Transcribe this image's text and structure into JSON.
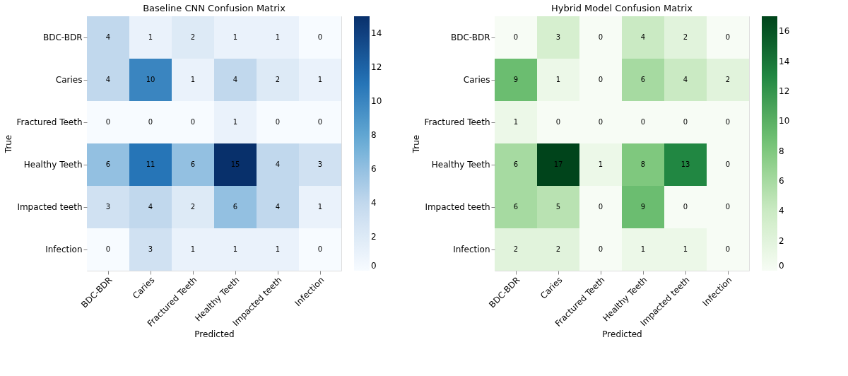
{
  "chart_data": [
    {
      "type": "heatmap",
      "title": "Baseline CNN Confusion Matrix",
      "xlabel": "Predicted",
      "ylabel": "True",
      "categories": [
        "BDC-BDR",
        "Caries",
        "Fractured Teeth",
        "Healthy Teeth",
        "Impacted teeth",
        "Infection"
      ],
      "y_categories": [
        "BDC-BDR",
        "Caries",
        "Fractured Teeth",
        "Healthy Teeth",
        "Impacted teeth",
        "Infection"
      ],
      "cells": [
        [
          4,
          1,
          2,
          1,
          1,
          0
        ],
        [
          4,
          10,
          1,
          4,
          2,
          1
        ],
        [
          0,
          0,
          0,
          1,
          0,
          0
        ],
        [
          6,
          11,
          6,
          15,
          4,
          3
        ],
        [
          3,
          4,
          2,
          6,
          4,
          1
        ],
        [
          0,
          3,
          1,
          1,
          1,
          0
        ]
      ],
      "clim": [
        0,
        15
      ],
      "cticks": [
        0,
        2,
        4,
        6,
        8,
        10,
        12,
        14
      ],
      "data_labels": true,
      "colors": [
        "#f7fbff",
        "#c6dbef",
        "#6baed6",
        "#2171b5",
        "#08306b"
      ]
    },
    {
      "type": "heatmap",
      "title": "Hybrid Model Confusion Matrix",
      "xlabel": "Predicted",
      "ylabel": "True",
      "categories": [
        "BDC-BDR",
        "Caries",
        "Fractured Teeth",
        "Healthy Teeth",
        "Impacted teeth",
        "Infection"
      ],
      "y_categories": [
        "BDC-BDR",
        "Caries",
        "Fractured Teeth",
        "Healthy Teeth",
        "Impacted teeth",
        "Infection"
      ],
      "cells": [
        [
          0,
          3,
          0,
          4,
          2,
          0
        ],
        [
          9,
          1,
          0,
          6,
          4,
          2
        ],
        [
          1,
          0,
          0,
          0,
          0,
          0
        ],
        [
          6,
          17,
          1,
          8,
          13,
          0
        ],
        [
          6,
          5,
          0,
          9,
          0,
          0
        ],
        [
          2,
          2,
          0,
          1,
          1,
          0
        ]
      ],
      "clim": [
        0,
        17
      ],
      "cticks": [
        0,
        2,
        4,
        6,
        8,
        10,
        12,
        14,
        16
      ],
      "data_labels": true,
      "colors": [
        "#f7fcf5",
        "#c7e9c0",
        "#74c476",
        "#238b45",
        "#00441b"
      ]
    }
  ]
}
